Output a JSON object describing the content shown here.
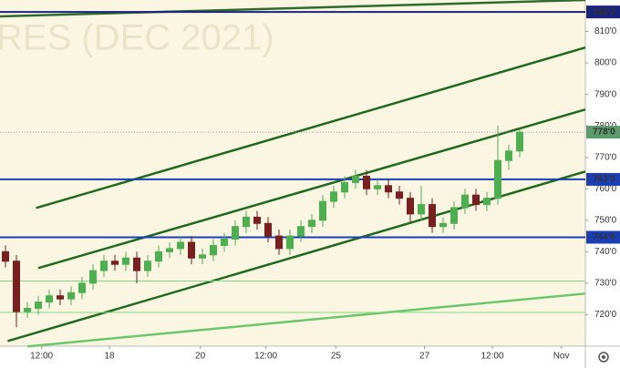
{
  "chart_data": {
    "type": "candlestick",
    "watermark": "RES (DEC 2021)",
    "ylim": [
      710,
      820
    ],
    "xlim": [
      -0.5,
      53
    ],
    "yticks": [
      {
        "value": 720,
        "label": "720'0"
      },
      {
        "value": 730,
        "label": "730'0"
      },
      {
        "value": 740,
        "label": "740'0"
      },
      {
        "value": 750,
        "label": "750'0"
      },
      {
        "value": 760,
        "label": "760'0"
      },
      {
        "value": 770,
        "label": "770'0"
      },
      {
        "value": 780,
        "label": "780'0"
      },
      {
        "value": 790,
        "label": "790'0"
      },
      {
        "value": 800,
        "label": "800'0"
      },
      {
        "value": 810,
        "label": "810'0"
      }
    ],
    "xticks": [
      {
        "value": 3.3,
        "label": "12:00"
      },
      {
        "value": 9.5,
        "label": "18"
      },
      {
        "value": 17.8,
        "label": "20"
      },
      {
        "value": 23.8,
        "label": "12:00"
      },
      {
        "value": 30.2,
        "label": "25"
      },
      {
        "value": 38.3,
        "label": "27"
      },
      {
        "value": 44.5,
        "label": "12:00"
      },
      {
        "value": 50.8,
        "label": "Nov"
      }
    ],
    "up_color": "#4caf50",
    "down_color": "#7a1f1f",
    "open": [
      740,
      737,
      721,
      722,
      724,
      726,
      725,
      727,
      730,
      734,
      737,
      736,
      738,
      734,
      737,
      740,
      741,
      743,
      738,
      739,
      742,
      744,
      748,
      751,
      749,
      745,
      741,
      745,
      748,
      750,
      756,
      759,
      762,
      764,
      760,
      761,
      759,
      757,
      752,
      755,
      748,
      749,
      754,
      758,
      755,
      757,
      769,
      772
    ],
    "high": [
      742,
      739,
      724,
      726,
      728,
      728,
      729,
      732,
      736,
      739,
      739,
      740,
      740,
      739,
      742,
      743,
      745,
      745,
      741,
      744,
      746,
      750,
      753,
      753,
      751,
      747,
      747,
      750,
      752,
      758,
      761,
      764,
      766,
      766,
      763,
      763,
      761,
      759,
      761,
      757,
      751,
      756,
      760,
      760,
      759,
      780,
      774,
      779
    ],
    "low": [
      735,
      716,
      719,
      720,
      722,
      723,
      723,
      725,
      728,
      732,
      734,
      734,
      730,
      732,
      735,
      738,
      739,
      736,
      736,
      737,
      740,
      742,
      746,
      747,
      743,
      739,
      739,
      743,
      746,
      748,
      754,
      757,
      760,
      758,
      758,
      757,
      755,
      749,
      750,
      746,
      746,
      747,
      752,
      753,
      753,
      755,
      766,
      770
    ],
    "close": [
      737,
      721,
      722,
      724,
      726,
      725,
      727,
      730,
      734,
      737,
      736,
      738,
      734,
      737,
      740,
      741,
      743,
      738,
      739,
      742,
      744,
      748,
      751,
      749,
      745,
      741,
      745,
      748,
      750,
      756,
      759,
      762,
      764,
      760,
      761,
      759,
      757,
      752,
      755,
      748,
      749,
      754,
      758,
      755,
      757,
      769,
      772,
      778
    ],
    "levels": [
      {
        "value": 816.2,
        "label": "816'2",
        "color": "#1a237e"
      },
      {
        "value": 763.0,
        "label": "763'0",
        "color": "#1a3fb5"
      },
      {
        "value": 744.6,
        "label": "744'6",
        "color": "#1a3fb5"
      },
      {
        "value": 730.7,
        "color": "#7fd67f"
      },
      {
        "value": 720.7,
        "color": "#7fd67f"
      }
    ],
    "last_price": {
      "value": 778.0,
      "label": "778'0",
      "color": "#5b9a6b"
    },
    "trend_lines": [
      {
        "start": [
          -0.5,
          814.8
        ],
        "end": [
          53,
          820
        ],
        "color": "#2e6b2e"
      },
      {
        "start": [
          2.8,
          753.9
        ],
        "end": [
          53,
          804.9
        ],
        "color": "#1f6a1f"
      },
      {
        "start": [
          3,
          734.8
        ],
        "end": [
          53,
          785.2
        ],
        "color": "#1f6a1f"
      },
      {
        "start": [
          0.2,
          711.6
        ],
        "end": [
          53,
          765.5
        ],
        "color": "#1f6a1f"
      },
      {
        "start": [
          2,
          709.9
        ],
        "end": [
          53,
          726.7
        ],
        "color": "#6cc76c"
      }
    ]
  }
}
